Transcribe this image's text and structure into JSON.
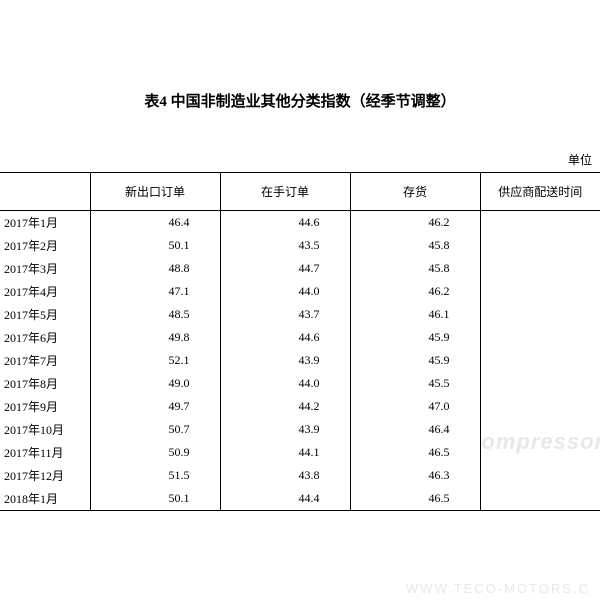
{
  "title": "表4 中国非制造业其他分类指数（经季节调整）",
  "unit_label": "单位",
  "columns": [
    "",
    "新出口订单",
    "在手订单",
    "存货",
    "供应商配送时间"
  ],
  "rows": [
    {
      "period": "2017年1月",
      "c1": "46.4",
      "c2": "44.6",
      "c3": "46.2",
      "c4": ""
    },
    {
      "period": "2017年2月",
      "c1": "50.1",
      "c2": "43.5",
      "c3": "45.8",
      "c4": ""
    },
    {
      "period": "2017年3月",
      "c1": "48.8",
      "c2": "44.7",
      "c3": "45.8",
      "c4": ""
    },
    {
      "period": "2017年4月",
      "c1": "47.1",
      "c2": "44.0",
      "c3": "46.2",
      "c4": ""
    },
    {
      "period": "2017年5月",
      "c1": "48.5",
      "c2": "43.7",
      "c3": "46.1",
      "c4": ""
    },
    {
      "period": "2017年6月",
      "c1": "49.8",
      "c2": "44.6",
      "c3": "45.9",
      "c4": ""
    },
    {
      "period": "2017年7月",
      "c1": "52.1",
      "c2": "43.9",
      "c3": "45.9",
      "c4": ""
    },
    {
      "period": "2017年8月",
      "c1": "49.0",
      "c2": "44.0",
      "c3": "45.5",
      "c4": ""
    },
    {
      "period": "2017年9月",
      "c1": "49.7",
      "c2": "44.2",
      "c3": "47.0",
      "c4": ""
    },
    {
      "period": "2017年10月",
      "c1": "50.7",
      "c2": "43.9",
      "c3": "46.4",
      "c4": ""
    },
    {
      "period": "2017年11月",
      "c1": "50.9",
      "c2": "44.1",
      "c3": "46.5",
      "c4": ""
    },
    {
      "period": "2017年12月",
      "c1": "51.5",
      "c2": "43.8",
      "c3": "46.3",
      "c4": ""
    },
    {
      "period": "2018年1月",
      "c1": "50.1",
      "c2": "44.4",
      "c3": "46.5",
      "c4": ""
    }
  ],
  "watermark1": "ompressor.",
  "watermark2": "WWW.TECO-MOTORS.C",
  "styling": {
    "title_fontsize": 15,
    "body_fontsize": 12,
    "border_color": "#000000",
    "background_color": "#ffffff",
    "text_color": "#000000",
    "watermark_color": "#e8e8e8"
  }
}
